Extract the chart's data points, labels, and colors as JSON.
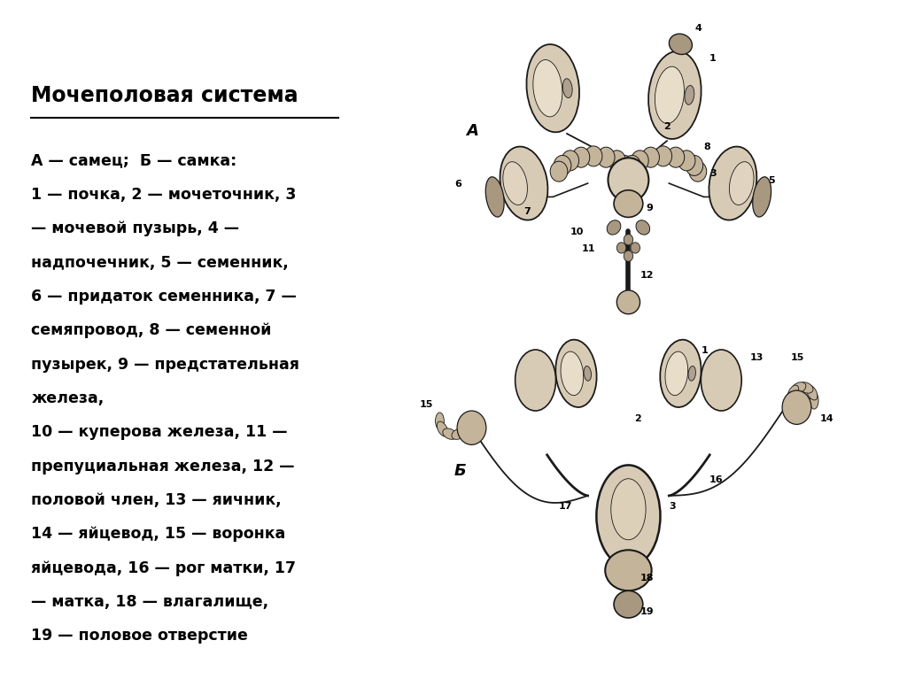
{
  "title": "Мочеполовая система",
  "background_color": "#ffffff",
  "text_color": "#000000",
  "description_lines": [
    "А — самец;  Б — самка:",
    "1 — почка, 2 — мочеточник, 3",
    "— мочевой пузырь, 4 —",
    "надпочечник, 5 — семенник,",
    "6 — придаток семенника, 7 —",
    "семяпровод, 8 — семенной",
    "пузырек, 9 — предстательная",
    "железа,",
    "10 — куперова железа, 11 —",
    "препуциальная железа, 12 —",
    "половой член, 13 — яичник,",
    "14 — яйцевод, 15 — воронка",
    "яйцевода, 16 — рог матки, 17",
    "— матка, 18 — влагалище,",
    "19 — половое отверстие"
  ],
  "title_fontsize": 17,
  "text_fontsize": 12.5,
  "figsize": [
    10.24,
    7.67
  ],
  "dpi": 100
}
